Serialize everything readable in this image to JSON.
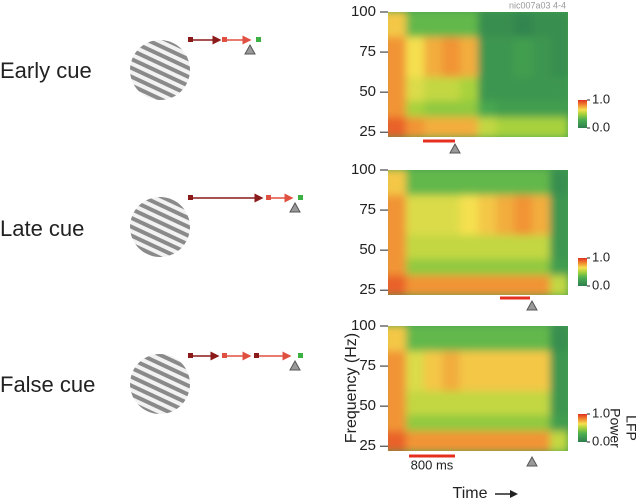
{
  "chart_data": [
    {
      "type": "heatmap",
      "title": "Early cue",
      "note": "nic007a03 4-4",
      "ylim": [
        22,
        100
      ],
      "yticks": [
        25,
        50,
        75,
        100
      ],
      "ybins": [
        22,
        35,
        45,
        60,
        85,
        100
      ],
      "values": [
        [
          0.9,
          0.8,
          0.75,
          0.75,
          0.75,
          0.55,
          0.5,
          0.5,
          0.5,
          0.5
        ],
        [
          0.8,
          0.5,
          0.45,
          0.45,
          0.45,
          0.25,
          0.2,
          0.2,
          0.2,
          0.2
        ],
        [
          0.8,
          0.6,
          0.55,
          0.55,
          0.5,
          0.15,
          0.15,
          0.15,
          0.15,
          0.15
        ],
        [
          0.8,
          0.65,
          0.75,
          0.8,
          0.75,
          0.15,
          0.15,
          0.2,
          0.15,
          0.1
        ],
        [
          0.7,
          0.35,
          0.35,
          0.35,
          0.35,
          0.1,
          0.1,
          0.05,
          0.1,
          0.1
        ]
      ],
      "clim": [
        0,
        1
      ],
      "cticks": [
        {
          "value": 0,
          "label": "0.0"
        },
        {
          "value": 1,
          "label": "1.0"
        }
      ]
    },
    {
      "type": "heatmap",
      "title": "Late cue",
      "ylim": [
        22,
        100
      ],
      "yticks": [
        25,
        50,
        75,
        100
      ],
      "ybins": [
        22,
        35,
        45,
        60,
        85,
        100
      ],
      "values": [
        [
          0.9,
          0.8,
          0.8,
          0.8,
          0.8,
          0.8,
          0.8,
          0.8,
          0.8,
          0.55
        ],
        [
          0.8,
          0.45,
          0.45,
          0.45,
          0.45,
          0.45,
          0.45,
          0.45,
          0.45,
          0.2
        ],
        [
          0.8,
          0.55,
          0.55,
          0.55,
          0.55,
          0.55,
          0.55,
          0.55,
          0.55,
          0.15
        ],
        [
          0.8,
          0.6,
          0.6,
          0.6,
          0.65,
          0.7,
          0.75,
          0.8,
          0.75,
          0.15
        ],
        [
          0.7,
          0.35,
          0.35,
          0.35,
          0.35,
          0.35,
          0.35,
          0.35,
          0.35,
          0.1
        ]
      ],
      "clim": [
        0,
        1
      ],
      "cticks": [
        {
          "value": 0,
          "label": "0.0"
        },
        {
          "value": 1,
          "label": "1.0"
        }
      ]
    },
    {
      "type": "heatmap",
      "title": "False cue",
      "annotation": "800 ms",
      "ylabel": "Frequency (Hz)",
      "xlabel": "Time",
      "colorbar_label": [
        "LFP",
        "Power"
      ],
      "ylim": [
        22,
        100
      ],
      "yticks": [
        25,
        50,
        75,
        100
      ],
      "ybins": [
        22,
        35,
        45,
        60,
        85,
        100
      ],
      "values": [
        [
          0.9,
          0.8,
          0.8,
          0.8,
          0.8,
          0.8,
          0.8,
          0.8,
          0.8,
          0.55
        ],
        [
          0.8,
          0.45,
          0.45,
          0.45,
          0.45,
          0.45,
          0.45,
          0.45,
          0.45,
          0.2
        ],
        [
          0.8,
          0.55,
          0.55,
          0.55,
          0.55,
          0.55,
          0.55,
          0.55,
          0.55,
          0.15
        ],
        [
          0.8,
          0.6,
          0.7,
          0.75,
          0.7,
          0.7,
          0.7,
          0.7,
          0.7,
          0.15
        ],
        [
          0.7,
          0.35,
          0.35,
          0.35,
          0.35,
          0.35,
          0.35,
          0.35,
          0.35,
          0.1
        ]
      ],
      "clim": [
        0,
        1
      ],
      "cticks": [
        {
          "value": 0,
          "label": "0.0"
        },
        {
          "value": 1,
          "label": "1.0"
        }
      ]
    }
  ]
}
